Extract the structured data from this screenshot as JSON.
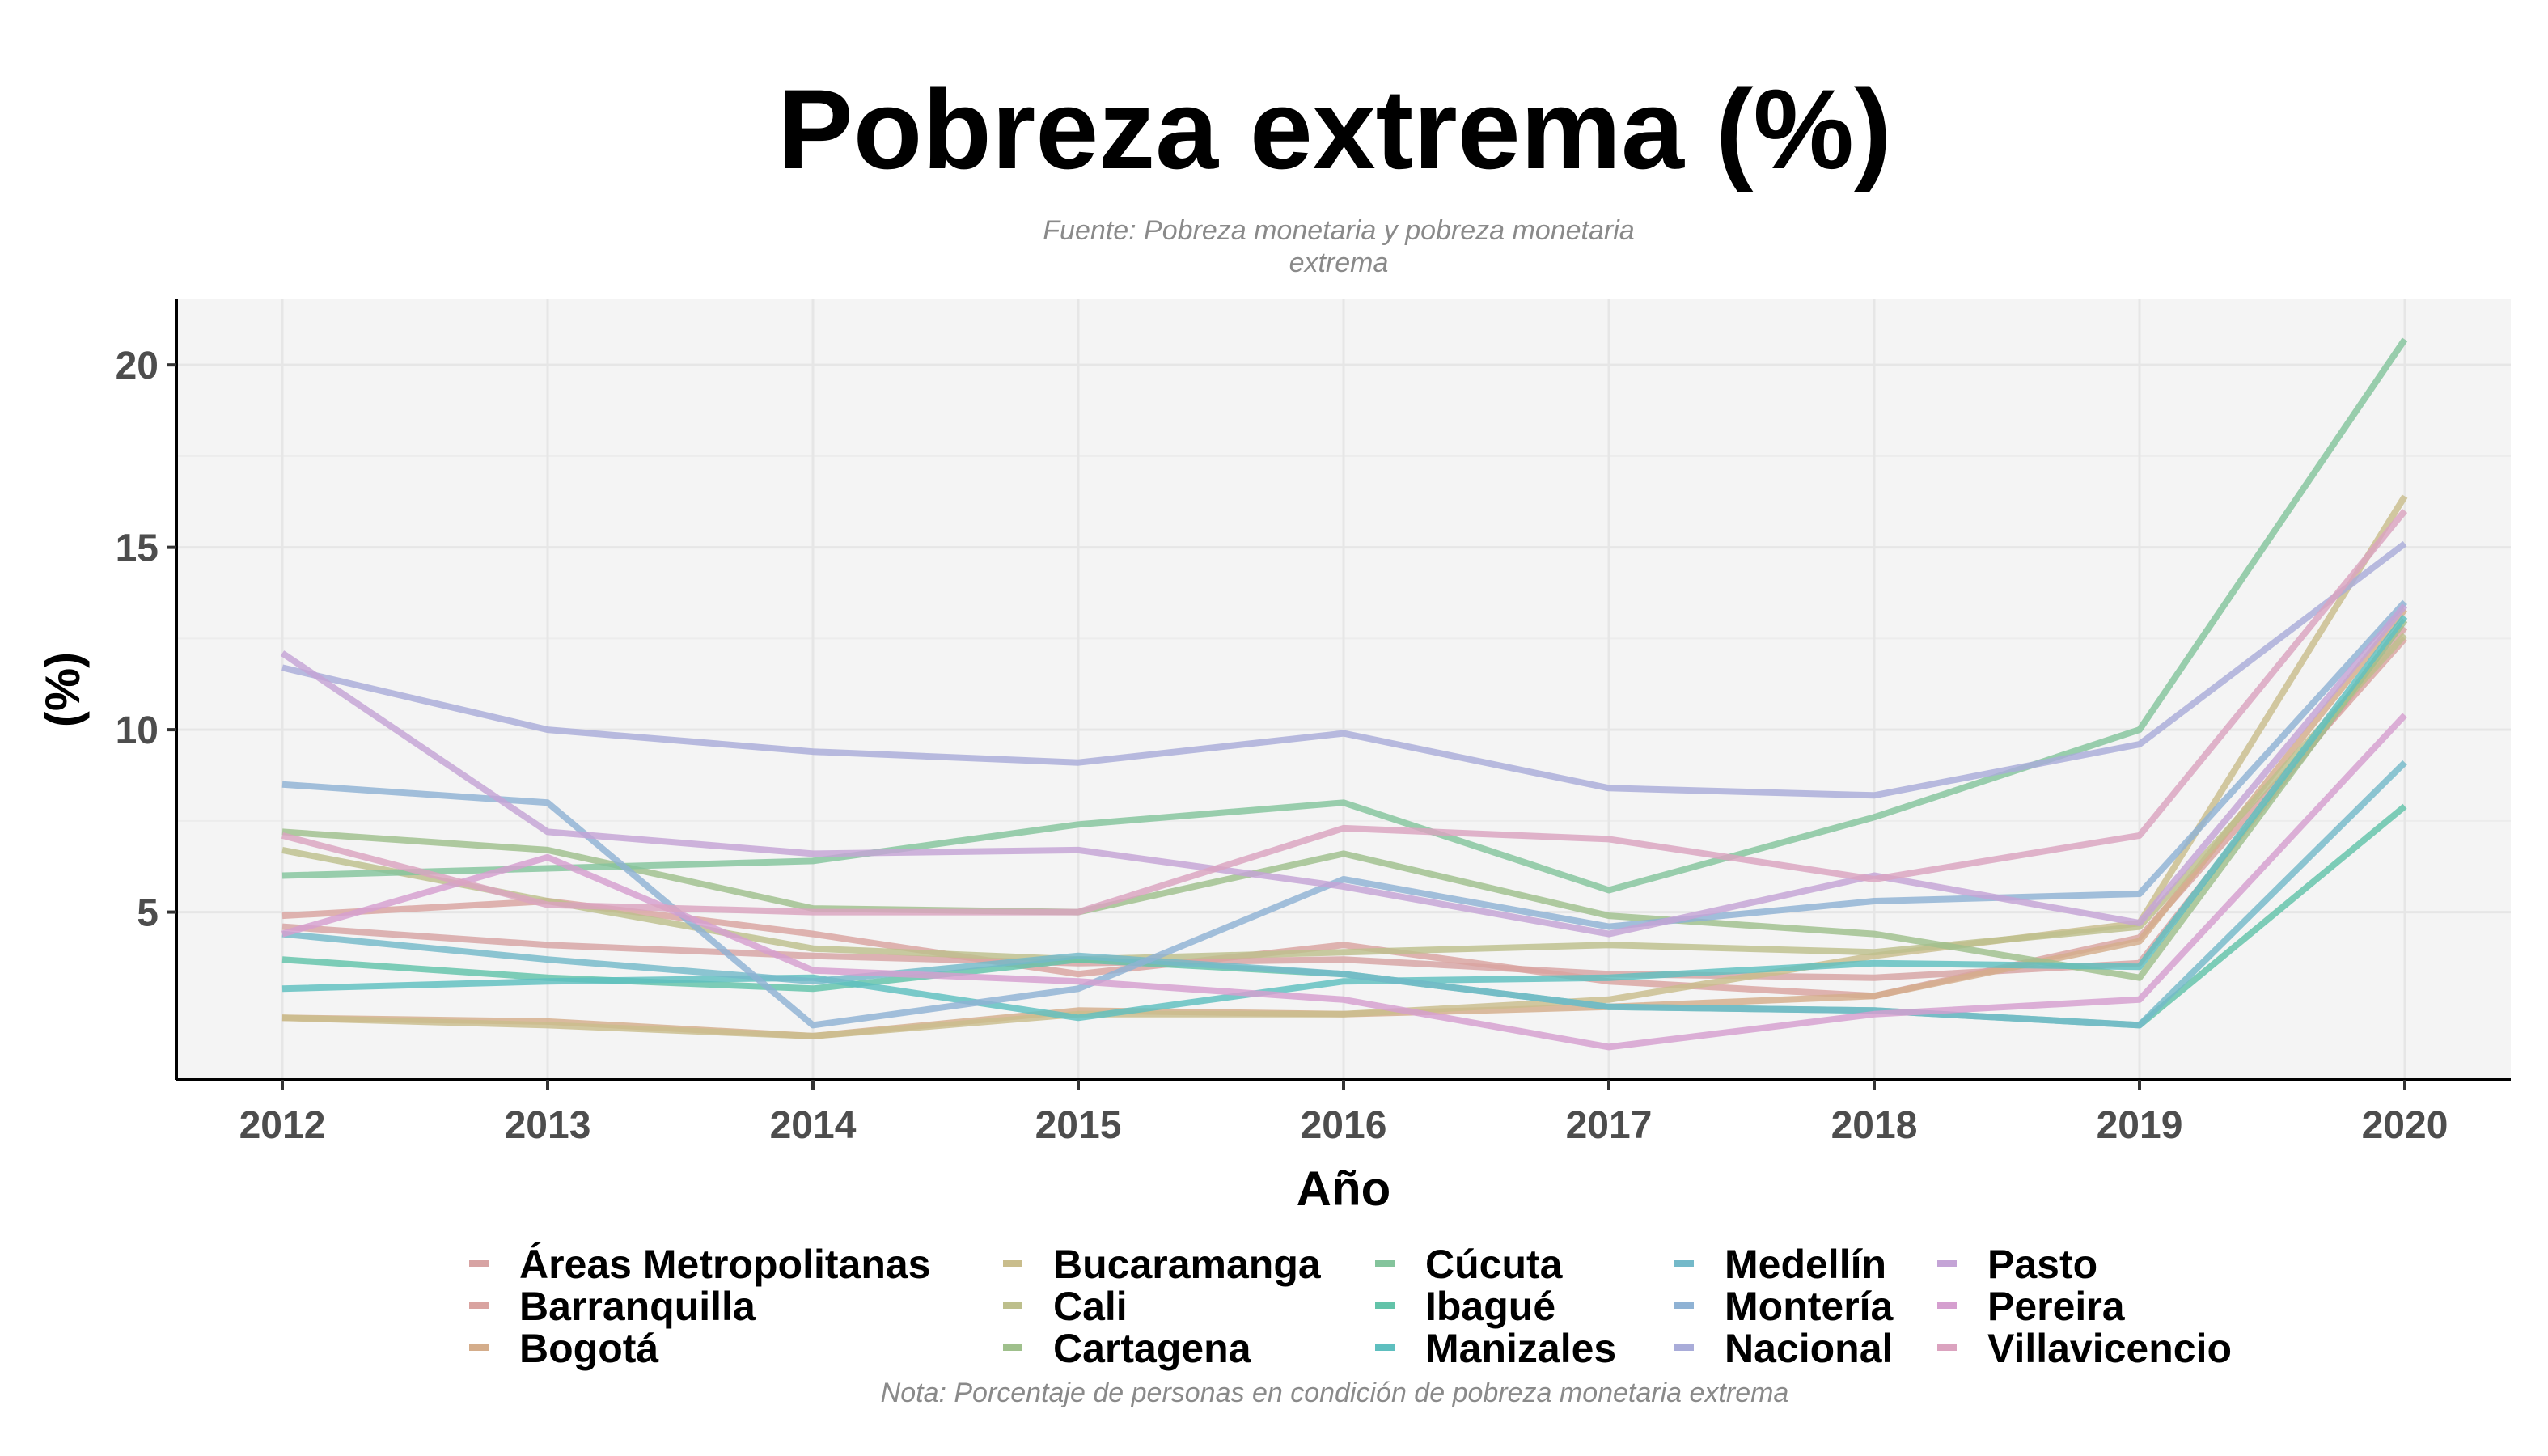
{
  "chart_data": {
    "type": "line",
    "title": "Pobreza extrema (%)",
    "subtitle": "Fuente: Pobreza monetaria y pobreza monetaria extrema",
    "note": "Nota: Porcentaje de personas en condición de pobreza monetaria extrema",
    "xlabel": "Año",
    "ylabel": "(%)",
    "x": [
      2012,
      2013,
      2014,
      2015,
      2016,
      2017,
      2018,
      2019,
      2020
    ],
    "ylim": [
      0.4,
      21.8
    ],
    "yticks": [
      5,
      10,
      15,
      20
    ],
    "grid": true,
    "legend_position": "bottom",
    "series": [
      {
        "name": "Áreas Metropolitanas",
        "color": "#d7a3a3",
        "values": [
          4.6,
          4.1,
          3.8,
          3.6,
          3.7,
          3.3,
          3.2,
          3.6,
          12.8
        ]
      },
      {
        "name": "Barranquilla",
        "color": "#d9a3a0",
        "values": [
          4.9,
          5.3,
          4.4,
          3.3,
          4.1,
          3.1,
          2.7,
          4.3,
          12.5
        ]
      },
      {
        "name": "Bogotá",
        "color": "#d4ad8b",
        "values": [
          2.1,
          2.0,
          1.6,
          2.3,
          2.2,
          2.4,
          2.7,
          4.2,
          13.3
        ]
      },
      {
        "name": "Bucaramanga",
        "color": "#c9bd8c",
        "values": [
          2.1,
          1.9,
          1.6,
          2.2,
          2.2,
          2.6,
          3.8,
          4.7,
          16.4
        ]
      },
      {
        "name": "Cali",
        "color": "#bdbf8c",
        "values": [
          6.7,
          5.3,
          4.0,
          3.7,
          3.9,
          4.1,
          3.9,
          4.6,
          12.6
        ]
      },
      {
        "name": "Cartagena",
        "color": "#9fc08c",
        "values": [
          7.2,
          6.7,
          5.1,
          5.0,
          6.6,
          4.9,
          4.4,
          3.2,
          13.0
        ]
      },
      {
        "name": "Cúcuta",
        "color": "#84c49c",
        "values": [
          6.0,
          6.2,
          6.4,
          7.4,
          8.0,
          5.6,
          7.6,
          10.0,
          20.7
        ]
      },
      {
        "name": "Ibagué",
        "color": "#62c3a9",
        "values": [
          3.7,
          3.2,
          2.9,
          3.7,
          3.3,
          2.4,
          2.3,
          1.9,
          7.9
        ]
      },
      {
        "name": "Manizales",
        "color": "#5ebfbf",
        "values": [
          2.9,
          3.1,
          3.2,
          2.1,
          3.1,
          3.2,
          3.6,
          3.5,
          13.1
        ]
      },
      {
        "name": "Medellín",
        "color": "#74b9c9",
        "values": [
          4.4,
          3.7,
          3.1,
          3.8,
          3.3,
          2.4,
          2.3,
          1.9,
          9.1
        ]
      },
      {
        "name": "Montería",
        "color": "#8fb2d4",
        "values": [
          8.5,
          8.0,
          1.9,
          2.9,
          5.9,
          4.6,
          5.3,
          5.5,
          13.5
        ]
      },
      {
        "name": "Nacional",
        "color": "#a9acd9",
        "values": [
          11.7,
          10.0,
          9.4,
          9.1,
          9.9,
          8.4,
          8.2,
          9.6,
          15.1
        ]
      },
      {
        "name": "Pasto",
        "color": "#c4a4d6",
        "values": [
          12.1,
          7.2,
          6.6,
          6.7,
          5.7,
          4.4,
          6.0,
          4.7,
          13.4
        ]
      },
      {
        "name": "Pereira",
        "color": "#d59fcf",
        "values": [
          4.4,
          6.5,
          3.4,
          3.1,
          2.6,
          1.3,
          2.2,
          2.6,
          10.4
        ]
      },
      {
        "name": "Villavicencio",
        "color": "#dba3bf",
        "values": [
          7.1,
          5.2,
          5.0,
          5.0,
          7.3,
          7.0,
          5.9,
          7.1,
          16.0
        ]
      }
    ]
  }
}
